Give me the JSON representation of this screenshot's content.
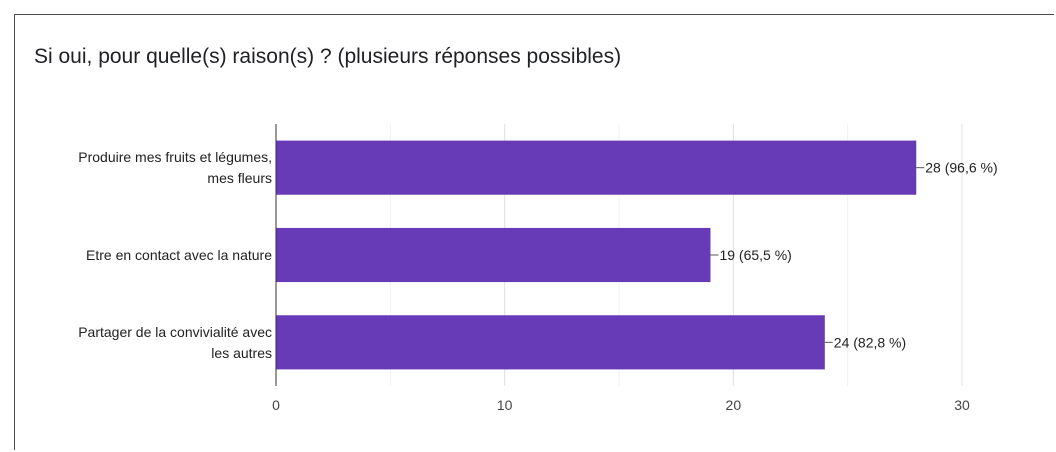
{
  "title": "Si oui, pour quelle(s) raison(s) ? (plusieurs réponses possibles)",
  "chart_data": {
    "type": "bar",
    "orientation": "horizontal",
    "title": "Si oui, pour quelle(s) raison(s) ? (plusieurs réponses possibles)",
    "categories": [
      [
        "Produire mes fruits et légumes,",
        "mes fleurs"
      ],
      [
        "Etre en contact avec la nature"
      ],
      [
        "Partager de la convivialité avec",
        "les autres"
      ]
    ],
    "values": [
      28,
      19,
      24
    ],
    "data_labels": [
      "28 (96,6 %)",
      "19 (65,5 %)",
      "24 (82,8 %)"
    ],
    "xlim": [
      0,
      30
    ],
    "xticks": [
      "0",
      "10",
      "20",
      "30"
    ],
    "grid": true,
    "bar_color": "#673ab7"
  }
}
